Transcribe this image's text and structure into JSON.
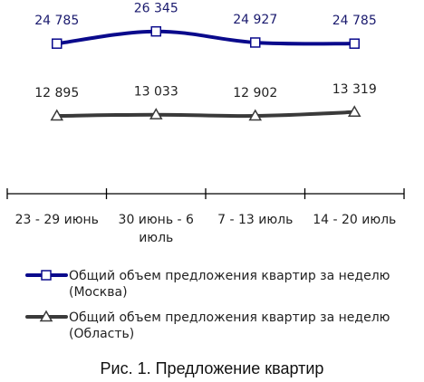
{
  "chart_data": {
    "type": "line",
    "categories": [
      [
        "23 - 29 июнь"
      ],
      [
        "30 июнь - 6",
        "июль"
      ],
      [
        "7 - 13 июль"
      ],
      [
        "14 - 20 июль"
      ]
    ],
    "series": [
      {
        "name": "Общий объем предложения квартир за неделю (Москва)",
        "name_lines": [
          "Общий объем предложения квартир за неделю",
          "(Москва)"
        ],
        "values": [
          24785,
          26345,
          24927,
          24785
        ],
        "labels": [
          "24 785",
          "26 345",
          "24 927",
          "24 785"
        ],
        "color": "#0a0a8c",
        "label_color": "#1a1a6e",
        "marker": "square"
      },
      {
        "name": "Общий объем предложения квартир за неделю (Область)",
        "name_lines": [
          "Общий объем предложения квартир за неделю",
          "(Область)"
        ],
        "values": [
          12895,
          13033,
          12902,
          13319
        ],
        "labels": [
          "12 895",
          "13 033",
          "12 902",
          "13 319"
        ],
        "color": "#3a3a3a",
        "label_color": "#222222",
        "marker": "triangle"
      }
    ],
    "legend_position": "bottom",
    "grid": false
  },
  "caption": "Рис. 1. Предложение квартир"
}
